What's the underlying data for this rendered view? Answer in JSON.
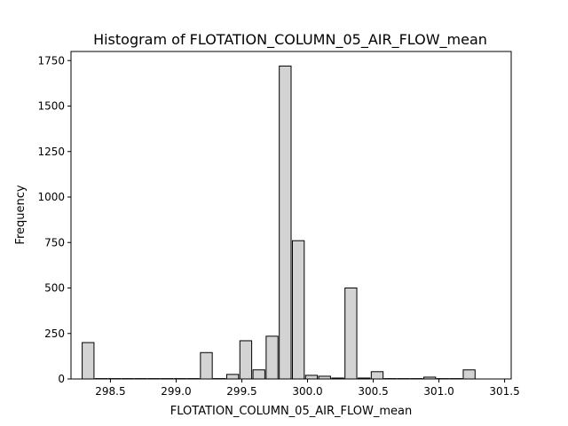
{
  "chart_data": {
    "type": "bar",
    "title": "Histogram of FLOTATION_COLUMN_05_AIR_FLOW_mean",
    "xlabel": "FLOTATION_COLUMN_05_AIR_FLOW_mean",
    "ylabel": "Frequency",
    "xlim": [
      298.2,
      301.55
    ],
    "ylim": [
      0,
      1800
    ],
    "xticks": [
      298.5,
      299.0,
      299.5,
      300.0,
      300.5,
      301.0,
      301.5
    ],
    "xtick_labels": [
      "298.5",
      "299.0",
      "299.5",
      "300.0",
      "300.5",
      "301.0",
      "301.5"
    ],
    "yticks": [
      0,
      250,
      500,
      750,
      1000,
      1250,
      1500,
      1750
    ],
    "ytick_labels": [
      "0",
      "250",
      "500",
      "750",
      "1000",
      "1250",
      "1500",
      "1750"
    ],
    "bin_start": 298.33,
    "bin_width": 0.1,
    "values": [
      200,
      2,
      2,
      2,
      2,
      2,
      2,
      2,
      2,
      145,
      2,
      25,
      210,
      50,
      235,
      1720,
      760,
      20,
      15,
      5,
      500,
      5,
      40,
      2,
      2,
      2,
      10,
      2,
      2,
      50
    ],
    "bar_fill": "#d3d3d3",
    "bar_edge": "#000000",
    "grid": false,
    "legend": "none"
  }
}
